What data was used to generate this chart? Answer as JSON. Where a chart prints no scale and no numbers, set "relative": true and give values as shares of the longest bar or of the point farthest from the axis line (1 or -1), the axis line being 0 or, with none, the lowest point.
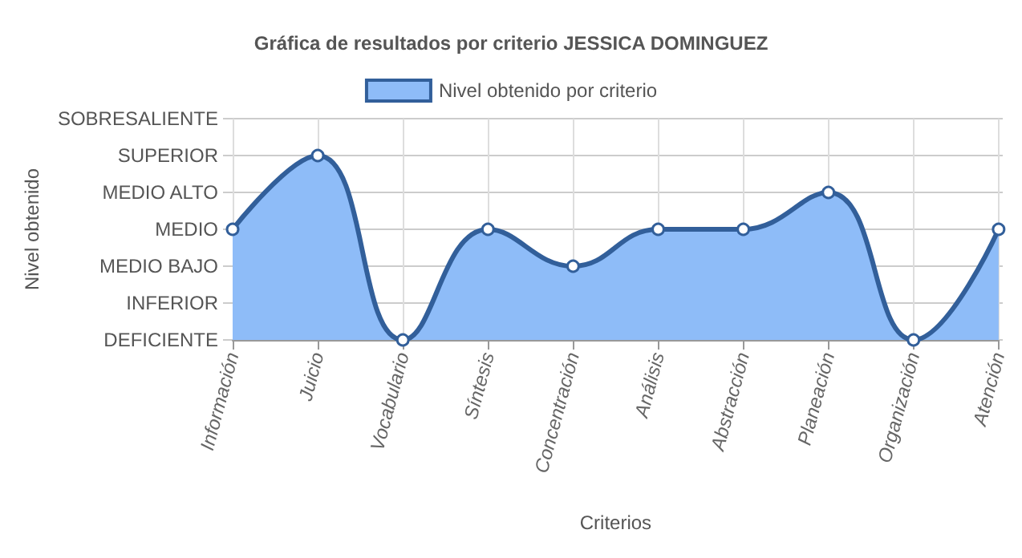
{
  "chart_data": {
    "type": "area",
    "title": "Gráfica de resultados por criterio JESSICA DOMINGUEZ",
    "xlabel": "Criterios",
    "relative": true,
    "categories": [
      "Información",
      "Juicio",
      "Vocabulario",
      "Síntesis",
      "Concentración",
      "Análisis",
      "Abstracción",
      "Planeación",
      "Organización",
      "Atención"
    ],
    "series": [
      {
        "name": "Nivel obtenido por criterio",
        "color": "#325f9a",
        "values": [
          0.6,
          1,
          0,
          0.6,
          0.4,
          0.6,
          0.6,
          0.8,
          0,
          0.6
        ]
      }
    ],
    "annotations": [
      "DEFICIENTE",
      "INFERIOR",
      "MEDIO BAJO",
      "MEDIO",
      "MEDIO ALTO",
      "SUPERIOR",
      "SOBRESALIENTE",
      "Nivel obtenido"
    ],
    "grid": true,
    "legend": "top",
    "marker": "circle",
    "line_style": "solid"
  }
}
